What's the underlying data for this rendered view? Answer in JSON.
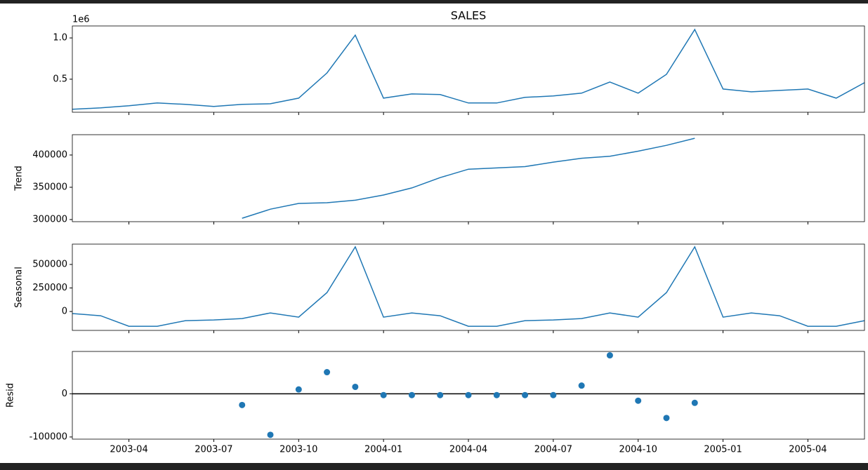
{
  "chart_data": [
    {
      "type": "line",
      "title": "SALES",
      "offset_label": "1e6",
      "color": "#1f77b4",
      "x": [
        "2003-02",
        "2003-03",
        "2003-04",
        "2003-05",
        "2003-06",
        "2003-07",
        "2003-08",
        "2003-09",
        "2003-10",
        "2003-11",
        "2003-12",
        "2004-01",
        "2004-02",
        "2004-03",
        "2004-04",
        "2004-05",
        "2004-06",
        "2004-07",
        "2004-08",
        "2004-09",
        "2004-10",
        "2004-11",
        "2004-12",
        "2005-01",
        "2005-02",
        "2005-03",
        "2005-04",
        "2005-05",
        "2005-06"
      ],
      "values": [
        136000,
        153000,
        178000,
        212000,
        195000,
        170000,
        195000,
        203000,
        271000,
        576000,
        1034000,
        271000,
        322000,
        314000,
        212000,
        212000,
        280000,
        297000,
        331000,
        466000,
        331000,
        559000,
        1102000,
        381000,
        347000,
        364000,
        381000,
        271000,
        458000
      ],
      "xlim": [
        "2003-02",
        "2005-06"
      ],
      "xticks": [
        "2003-04",
        "2003-07",
        "2003-10",
        "2004-01",
        "2004-04",
        "2004-07",
        "2004-10",
        "2005-01",
        "2005-04"
      ],
      "ylim": [
        100000,
        1145000
      ],
      "yticks": [
        {
          "value": 500000,
          "label": "0.5"
        },
        {
          "value": 1000000,
          "label": "1.0"
        }
      ]
    },
    {
      "type": "line",
      "ylabel": "Trend",
      "color": "#1f77b4",
      "x": [
        "2003-02",
        "2003-03",
        "2003-04",
        "2003-05",
        "2003-06",
        "2003-07",
        "2003-08",
        "2003-09",
        "2003-10",
        "2003-11",
        "2003-12",
        "2004-01",
        "2004-02",
        "2004-03",
        "2004-04",
        "2004-05",
        "2004-06",
        "2004-07",
        "2004-08",
        "2004-09",
        "2004-10",
        "2004-11",
        "2004-12",
        "2005-01",
        "2005-02",
        "2005-03",
        "2005-04",
        "2005-05",
        "2005-06"
      ],
      "values": [
        null,
        null,
        null,
        null,
        null,
        null,
        302000,
        316000,
        325000,
        326000,
        330000,
        338000,
        349000,
        365000,
        378000,
        380000,
        382000,
        389000,
        395000,
        398000,
        406000,
        415000,
        426000,
        null,
        null,
        null,
        null,
        null,
        null
      ],
      "xlim": [
        "2003-02",
        "2005-06"
      ],
      "xticks": [
        "2003-04",
        "2003-07",
        "2003-10",
        "2004-01",
        "2004-04",
        "2004-07",
        "2004-10",
        "2005-01",
        "2005-04"
      ],
      "ylim": [
        296700,
        431500
      ],
      "yticks": [
        300000,
        350000,
        400000
      ]
    },
    {
      "type": "line",
      "ylabel": "Seasonal",
      "color": "#1f77b4",
      "x": [
        "2003-02",
        "2003-03",
        "2003-04",
        "2003-05",
        "2003-06",
        "2003-07",
        "2003-08",
        "2003-09",
        "2003-10",
        "2003-11",
        "2003-12",
        "2004-01",
        "2004-02",
        "2004-03",
        "2004-04",
        "2004-05",
        "2004-06",
        "2004-07",
        "2004-08",
        "2004-09",
        "2004-10",
        "2004-11",
        "2004-12",
        "2005-01",
        "2005-02",
        "2005-03",
        "2005-04",
        "2005-05",
        "2005-06"
      ],
      "values": [
        -22000,
        -45000,
        -157000,
        -157000,
        -97000,
        -90000,
        -75000,
        -15000,
        -60000,
        201000,
        687000,
        -60000,
        -15000,
        -45000,
        -157000,
        -157000,
        -97000,
        -90000,
        -75000,
        -15000,
        -60000,
        201000,
        687000,
        -60000,
        -15000,
        -45000,
        -157000,
        -157000,
        -97000
      ],
      "xlim": [
        "2003-02",
        "2005-06"
      ],
      "xticks": [
        "2003-04",
        "2003-07",
        "2003-10",
        "2004-01",
        "2004-04",
        "2004-07",
        "2004-10",
        "2005-01",
        "2005-04"
      ],
      "ylim": [
        -201000,
        716000
      ],
      "yticks": [
        0,
        250000,
        500000
      ]
    },
    {
      "type": "scatter",
      "ylabel": "Resid",
      "color": "#1f77b4",
      "axhline": 0,
      "x": [
        "2003-02",
        "2003-03",
        "2003-04",
        "2003-05",
        "2003-06",
        "2003-07",
        "2003-08",
        "2003-09",
        "2003-10",
        "2003-11",
        "2003-12",
        "2004-01",
        "2004-02",
        "2004-03",
        "2004-04",
        "2004-05",
        "2004-06",
        "2004-07",
        "2004-08",
        "2004-09",
        "2004-10",
        "2004-11",
        "2004-12",
        "2005-01",
        "2005-02",
        "2005-03",
        "2005-04",
        "2005-05",
        "2005-06"
      ],
      "values": [
        null,
        null,
        null,
        null,
        null,
        null,
        -26000,
        -95000,
        10000,
        50000,
        16000,
        -3000,
        -3000,
        -3000,
        -3000,
        -3000,
        -3000,
        -3000,
        19000,
        89000,
        -16000,
        -56000,
        -21000,
        null,
        null,
        null,
        null,
        null,
        null
      ],
      "xlim": [
        "2003-02",
        "2005-06"
      ],
      "xticks": [
        "2003-04",
        "2003-07",
        "2003-10",
        "2004-01",
        "2004-04",
        "2004-07",
        "2004-10",
        "2005-01",
        "2005-04"
      ],
      "ylim": [
        -105000,
        98000
      ],
      "yticks": [
        -100000,
        0
      ]
    }
  ]
}
